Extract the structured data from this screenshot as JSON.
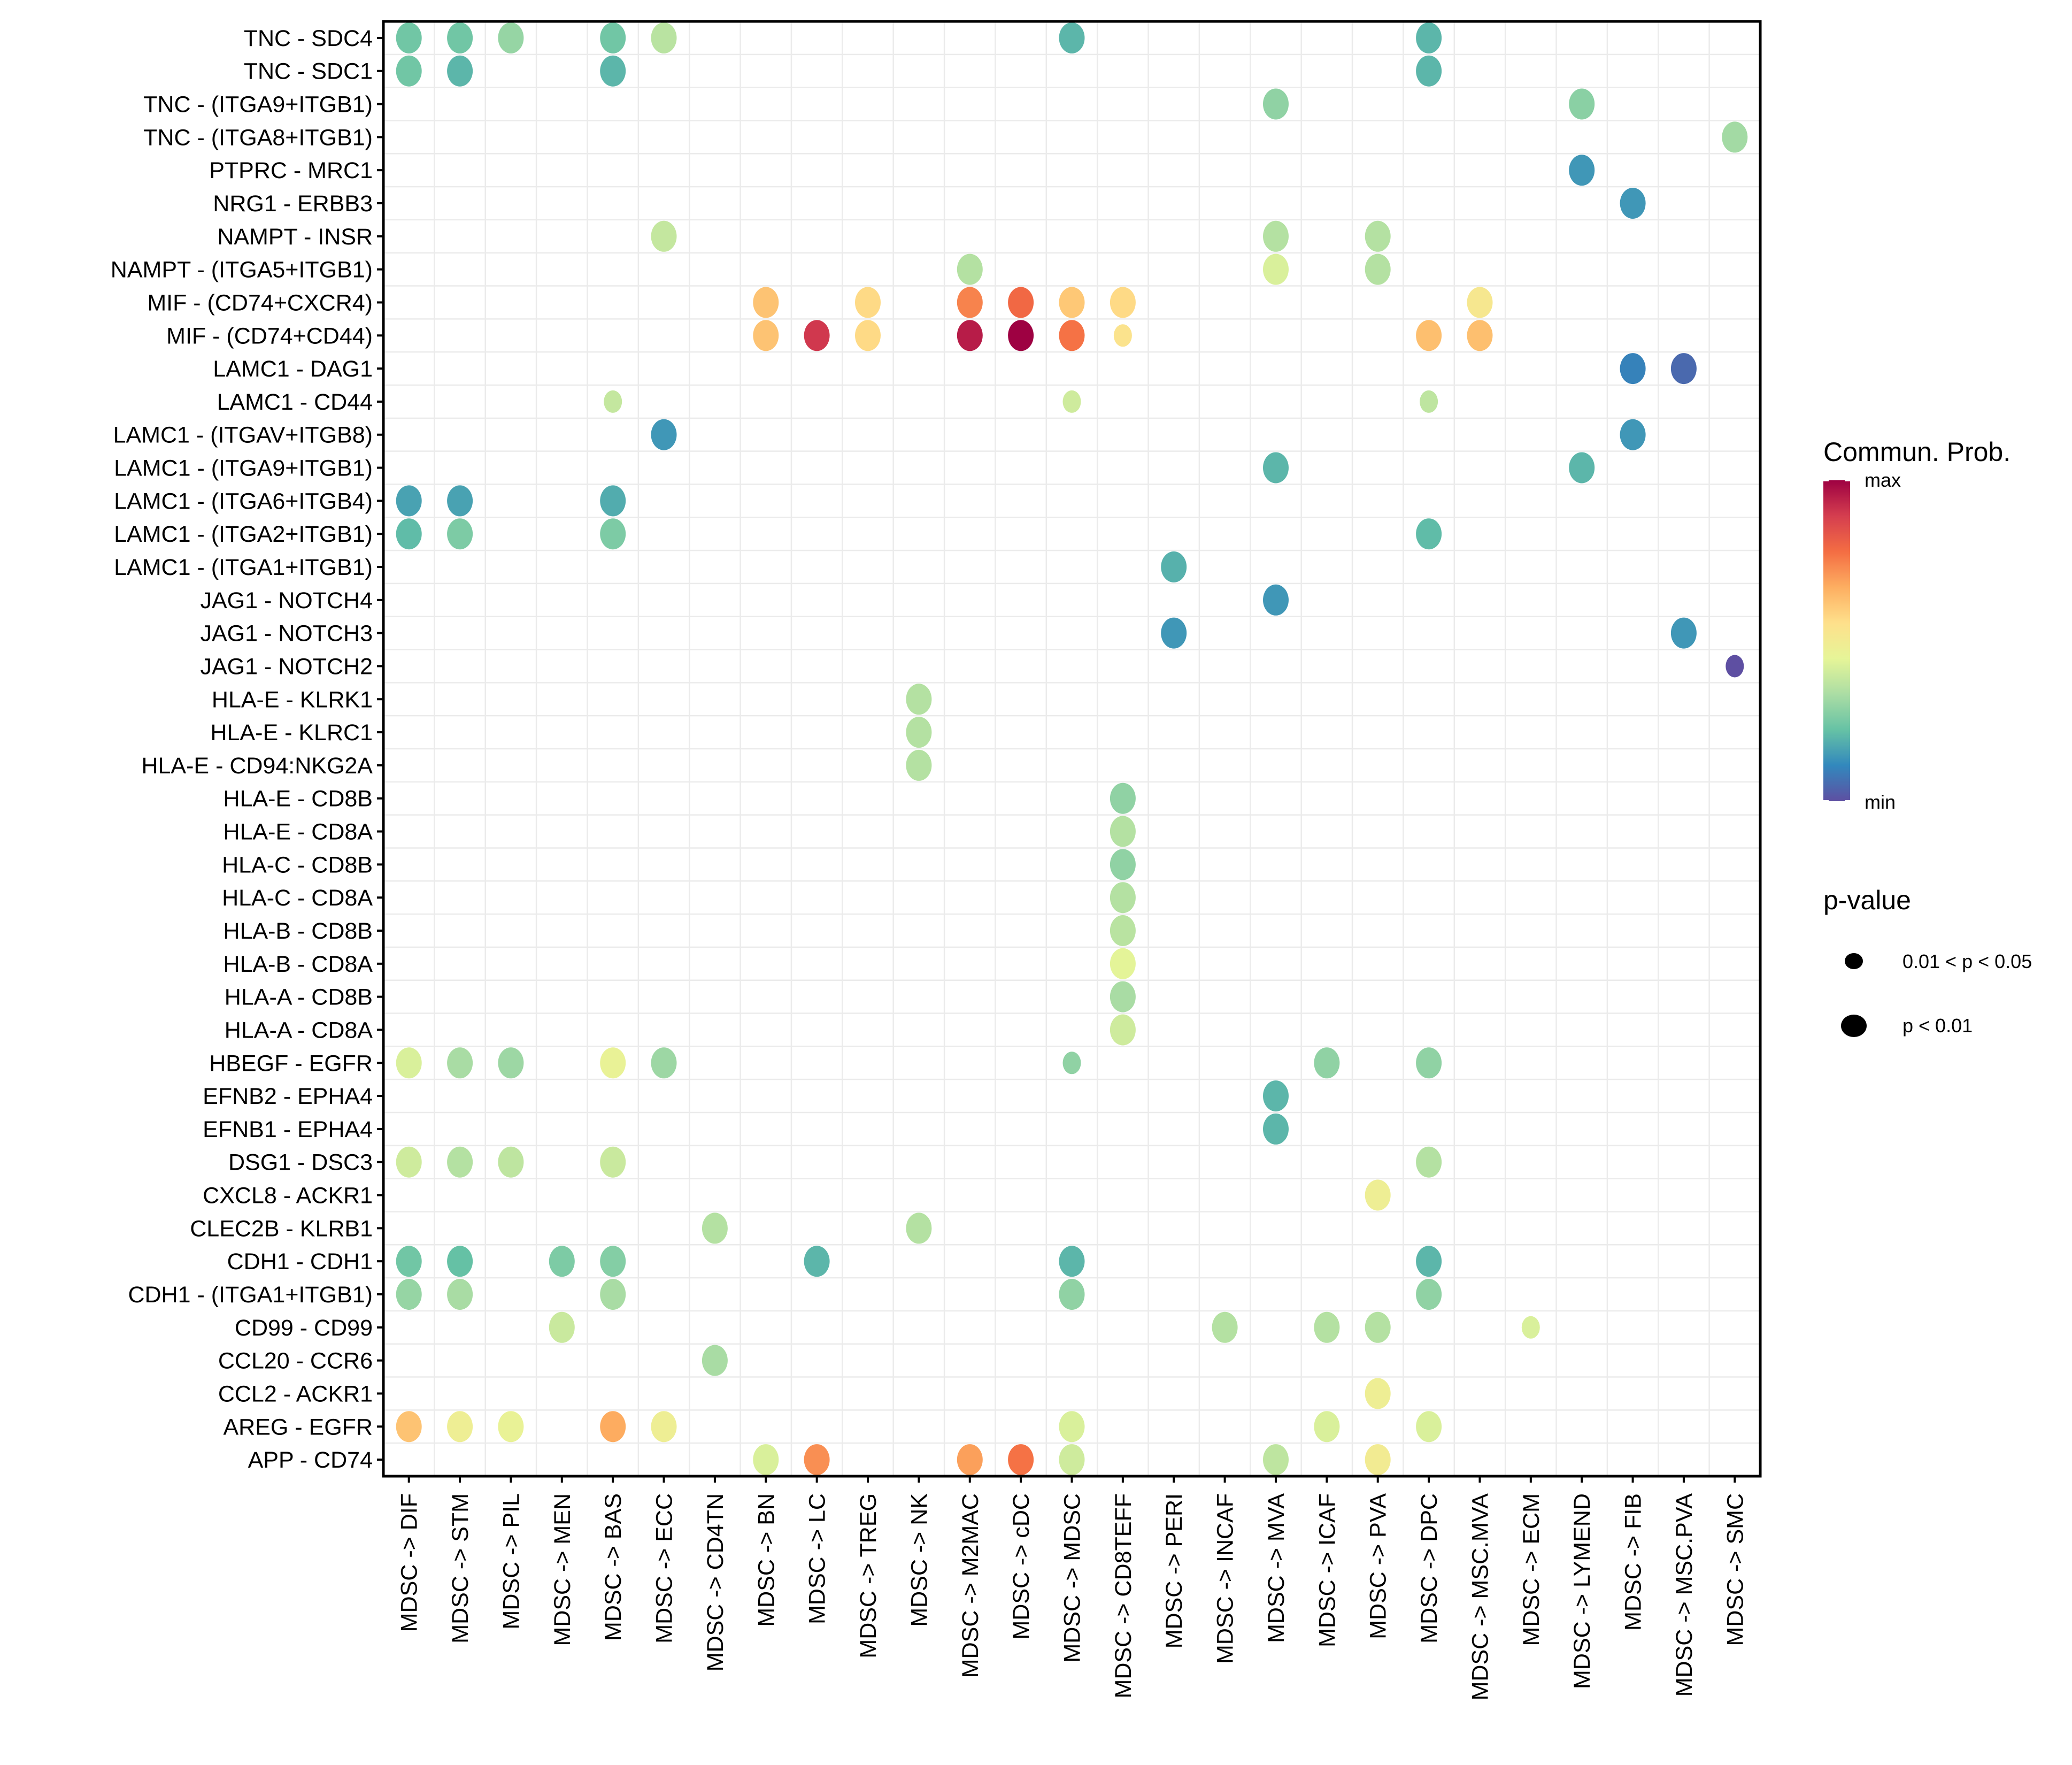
{
  "chart_data": {
    "type": "scatter",
    "subtype": "bubble-dotplot",
    "title": "",
    "xlabel": "",
    "ylabel": "",
    "grid": true,
    "x_categories": [
      "MDSC -> DIF",
      "MDSC -> STM",
      "MDSC -> PIL",
      "MDSC -> MEN",
      "MDSC -> BAS",
      "MDSC -> ECC",
      "MDSC -> CD4TN",
      "MDSC -> BN",
      "MDSC -> LC",
      "MDSC -> TREG",
      "MDSC -> NK",
      "MDSC -> M2MAC",
      "MDSC -> cDC",
      "MDSC -> MDSC",
      "MDSC -> CD8TEFF",
      "MDSC -> PERI",
      "MDSC -> INCAF",
      "MDSC -> MVA",
      "MDSC -> ICAF",
      "MDSC -> PVA",
      "MDSC -> DPC",
      "MDSC -> MSC.MVA",
      "MDSC -> ECM",
      "MDSC -> LYMEND",
      "MDSC -> FIB",
      "MDSC -> MSC.PVA",
      "MDSC -> SMC"
    ],
    "y_categories_top_to_bottom": [
      "TNC - SDC4",
      "TNC - SDC1",
      "TNC - (ITGA9+ITGB1)",
      "TNC - (ITGA8+ITGB1)",
      "PTPRC - MRC1",
      "NRG1 - ERBB3",
      "NAMPT - INSR",
      "NAMPT - (ITGA5+ITGB1)",
      "MIF - (CD74+CXCR4)",
      "MIF - (CD74+CD44)",
      "LAMC1 - DAG1",
      "LAMC1 - CD44",
      "LAMC1 - (ITGAV+ITGB8)",
      "LAMC1 - (ITGA9+ITGB1)",
      "LAMC1 - (ITGA6+ITGB4)",
      "LAMC1 - (ITGA2+ITGB1)",
      "LAMC1 - (ITGA1+ITGB1)",
      "JAG1 - NOTCH4",
      "JAG1 - NOTCH3",
      "JAG1 - NOTCH2",
      "HLA-E - KLRK1",
      "HLA-E - KLRC1",
      "HLA-E - CD94:NKG2A",
      "HLA-E - CD8B",
      "HLA-E - CD8A",
      "HLA-C - CD8B",
      "HLA-C - CD8A",
      "HLA-B - CD8B",
      "HLA-B - CD8A",
      "HLA-A - CD8B",
      "HLA-A - CD8A",
      "HBEGF - EGFR",
      "EFNB2 - EPHA4",
      "EFNB1 - EPHA4",
      "DSG1 - DSC3",
      "CXCL8 - ACKR1",
      "CLEC2B - KLRB1",
      "CDH1 - CDH1",
      "CDH1 - (ITGA1+ITGB1)",
      "CD99 - CD99",
      "CCL20 - CCR6",
      "CCL2 - ACKR1",
      "AREG - EGFR",
      "APP - CD74"
    ],
    "value_note": "prob is relative communication probability, 0 = min, 1 = max (estimated from color)",
    "points": [
      {
        "y": "TNC - SDC4",
        "x": "MDSC -> DIF",
        "prob": 0.24,
        "p": "p < 0.01"
      },
      {
        "y": "TNC - SDC4",
        "x": "MDSC -> STM",
        "prob": 0.24,
        "p": "p < 0.01"
      },
      {
        "y": "TNC - SDC4",
        "x": "MDSC -> PIL",
        "prob": 0.3,
        "p": "p < 0.01"
      },
      {
        "y": "TNC - SDC4",
        "x": "MDSC -> BAS",
        "prob": 0.24,
        "p": "p < 0.01"
      },
      {
        "y": "TNC - SDC4",
        "x": "MDSC -> ECC",
        "prob": 0.36,
        "p": "p < 0.01"
      },
      {
        "y": "TNC - SDC4",
        "x": "MDSC -> MDSC",
        "prob": 0.2,
        "p": "p < 0.01"
      },
      {
        "y": "TNC - SDC4",
        "x": "MDSC -> DPC",
        "prob": 0.2,
        "p": "p < 0.01"
      },
      {
        "y": "TNC - SDC1",
        "x": "MDSC -> DIF",
        "prob": 0.24,
        "p": "p < 0.01"
      },
      {
        "y": "TNC - SDC1",
        "x": "MDSC -> STM",
        "prob": 0.2,
        "p": "p < 0.01"
      },
      {
        "y": "TNC - SDC1",
        "x": "MDSC -> BAS",
        "prob": 0.2,
        "p": "p < 0.01"
      },
      {
        "y": "TNC - SDC1",
        "x": "MDSC -> DPC",
        "prob": 0.2,
        "p": "p < 0.01"
      },
      {
        "y": "TNC - (ITGA9+ITGB1)",
        "x": "MDSC -> MVA",
        "prob": 0.29,
        "p": "p < 0.01"
      },
      {
        "y": "TNC - (ITGA9+ITGB1)",
        "x": "MDSC -> LYMEND",
        "prob": 0.28,
        "p": "p < 0.01"
      },
      {
        "y": "TNC - (ITGA8+ITGB1)",
        "x": "MDSC -> SMC",
        "prob": 0.32,
        "p": "p < 0.01"
      },
      {
        "y": "PTPRC - MRC1",
        "x": "MDSC -> LYMEND",
        "prob": 0.14,
        "p": "p < 0.01"
      },
      {
        "y": "NRG1 - ERBB3",
        "x": "MDSC -> FIB",
        "prob": 0.14,
        "p": "p < 0.01"
      },
      {
        "y": "NAMPT - INSR",
        "x": "MDSC -> ECC",
        "prob": 0.38,
        "p": "p < 0.01"
      },
      {
        "y": "NAMPT - INSR",
        "x": "MDSC -> MVA",
        "prob": 0.35,
        "p": "p < 0.01"
      },
      {
        "y": "NAMPT - INSR",
        "x": "MDSC -> PVA",
        "prob": 0.35,
        "p": "p < 0.01"
      },
      {
        "y": "NAMPT - (ITGA5+ITGB1)",
        "x": "MDSC -> M2MAC",
        "prob": 0.35,
        "p": "p < 0.01"
      },
      {
        "y": "NAMPT - (ITGA5+ITGB1)",
        "x": "MDSC -> MVA",
        "prob": 0.42,
        "p": "p < 0.01"
      },
      {
        "y": "NAMPT - (ITGA5+ITGB1)",
        "x": "MDSC -> PVA",
        "prob": 0.35,
        "p": "p < 0.01"
      },
      {
        "y": "MIF - (CD74+CXCR4)",
        "x": "MDSC -> BN",
        "prob": 0.62,
        "p": "p < 0.01"
      },
      {
        "y": "MIF - (CD74+CXCR4)",
        "x": "MDSC -> TREG",
        "prob": 0.57,
        "p": "p < 0.01"
      },
      {
        "y": "MIF - (CD74+CXCR4)",
        "x": "MDSC -> M2MAC",
        "prob": 0.74,
        "p": "p < 0.01"
      },
      {
        "y": "MIF - (CD74+CXCR4)",
        "x": "MDSC -> cDC",
        "prob": 0.79,
        "p": "p < 0.01"
      },
      {
        "y": "MIF - (CD74+CXCR4)",
        "x": "MDSC -> MDSC",
        "prob": 0.61,
        "p": "p < 0.01"
      },
      {
        "y": "MIF - (CD74+CXCR4)",
        "x": "MDSC -> CD8TEFF",
        "prob": 0.57,
        "p": "p < 0.01"
      },
      {
        "y": "MIF - (CD74+CXCR4)",
        "x": "MDSC -> MSC.MVA",
        "prob": 0.52,
        "p": "p < 0.01"
      },
      {
        "y": "MIF - (CD74+CD44)",
        "x": "MDSC -> BN",
        "prob": 0.62,
        "p": "p < 0.01"
      },
      {
        "y": "MIF - (CD74+CD44)",
        "x": "MDSC -> LC",
        "prob": 0.9,
        "p": "p < 0.01"
      },
      {
        "y": "MIF - (CD74+CD44)",
        "x": "MDSC -> TREG",
        "prob": 0.57,
        "p": "p < 0.01"
      },
      {
        "y": "MIF - (CD74+CD44)",
        "x": "MDSC -> M2MAC",
        "prob": 0.95,
        "p": "p < 0.01"
      },
      {
        "y": "MIF - (CD74+CD44)",
        "x": "MDSC -> cDC",
        "prob": 1.0,
        "p": "p < 0.01"
      },
      {
        "y": "MIF - (CD74+CD44)",
        "x": "MDSC -> MDSC",
        "prob": 0.77,
        "p": "p < 0.01"
      },
      {
        "y": "MIF - (CD74+CD44)",
        "x": "MDSC -> CD8TEFF",
        "prob": 0.54,
        "p": "0.01 < p < 0.05"
      },
      {
        "y": "MIF - (CD74+CD44)",
        "x": "MDSC -> DPC",
        "prob": 0.63,
        "p": "p < 0.01"
      },
      {
        "y": "MIF - (CD74+CD44)",
        "x": "MDSC -> MSC.MVA",
        "prob": 0.63,
        "p": "p < 0.01"
      },
      {
        "y": "LAMC1 - DAG1",
        "x": "MDSC -> FIB",
        "prob": 0.1,
        "p": "p < 0.01"
      },
      {
        "y": "LAMC1 - DAG1",
        "x": "MDSC -> MSC.PVA",
        "prob": 0.05,
        "p": "p < 0.01"
      },
      {
        "y": "LAMC1 - CD44",
        "x": "MDSC -> BAS",
        "prob": 0.38,
        "p": "0.01 < p < 0.05"
      },
      {
        "y": "LAMC1 - CD44",
        "x": "MDSC -> MDSC",
        "prob": 0.4,
        "p": "0.01 < p < 0.05"
      },
      {
        "y": "LAMC1 - CD44",
        "x": "MDSC -> DPC",
        "prob": 0.37,
        "p": "0.01 < p < 0.05"
      },
      {
        "y": "LAMC1 - (ITGAV+ITGB8)",
        "x": "MDSC -> ECC",
        "prob": 0.14,
        "p": "p < 0.01"
      },
      {
        "y": "LAMC1 - (ITGAV+ITGB8)",
        "x": "MDSC -> FIB",
        "prob": 0.14,
        "p": "p < 0.01"
      },
      {
        "y": "LAMC1 - (ITGA9+ITGB1)",
        "x": "MDSC -> MVA",
        "prob": 0.2,
        "p": "p < 0.01"
      },
      {
        "y": "LAMC1 - (ITGA9+ITGB1)",
        "x": "MDSC -> LYMEND",
        "prob": 0.2,
        "p": "p < 0.01"
      },
      {
        "y": "LAMC1 - (ITGA6+ITGB4)",
        "x": "MDSC -> DIF",
        "prob": 0.16,
        "p": "p < 0.01"
      },
      {
        "y": "LAMC1 - (ITGA6+ITGB4)",
        "x": "MDSC -> STM",
        "prob": 0.16,
        "p": "p < 0.01"
      },
      {
        "y": "LAMC1 - (ITGA6+ITGB4)",
        "x": "MDSC -> BAS",
        "prob": 0.18,
        "p": "p < 0.01"
      },
      {
        "y": "LAMC1 - (ITGA2+ITGB1)",
        "x": "MDSC -> DIF",
        "prob": 0.21,
        "p": "p < 0.01"
      },
      {
        "y": "LAMC1 - (ITGA2+ITGB1)",
        "x": "MDSC -> STM",
        "prob": 0.26,
        "p": "p < 0.01"
      },
      {
        "y": "LAMC1 - (ITGA2+ITGB1)",
        "x": "MDSC -> BAS",
        "prob": 0.26,
        "p": "p < 0.01"
      },
      {
        "y": "LAMC1 - (ITGA2+ITGB1)",
        "x": "MDSC -> DPC",
        "prob": 0.21,
        "p": "p < 0.01"
      },
      {
        "y": "LAMC1 - (ITGA1+ITGB1)",
        "x": "MDSC -> PERI",
        "prob": 0.19,
        "p": "p < 0.01"
      },
      {
        "y": "JAG1 - NOTCH4",
        "x": "MDSC -> MVA",
        "prob": 0.14,
        "p": "p < 0.01"
      },
      {
        "y": "JAG1 - NOTCH3",
        "x": "MDSC -> PERI",
        "prob": 0.14,
        "p": "p < 0.01"
      },
      {
        "y": "JAG1 - NOTCH3",
        "x": "MDSC -> MSC.PVA",
        "prob": 0.14,
        "p": "p < 0.01"
      },
      {
        "y": "JAG1 - NOTCH2",
        "x": "MDSC -> SMC",
        "prob": 0.0,
        "p": "0.01 < p < 0.05"
      },
      {
        "y": "HLA-E - KLRK1",
        "x": "MDSC -> NK",
        "prob": 0.35,
        "p": "p < 0.01"
      },
      {
        "y": "HLA-E - KLRC1",
        "x": "MDSC -> NK",
        "prob": 0.35,
        "p": "p < 0.01"
      },
      {
        "y": "HLA-E - CD94:NKG2A",
        "x": "MDSC -> NK",
        "prob": 0.35,
        "p": "p < 0.01"
      },
      {
        "y": "HLA-E - CD8B",
        "x": "MDSC -> CD8TEFF",
        "prob": 0.29,
        "p": "p < 0.01"
      },
      {
        "y": "HLA-E - CD8A",
        "x": "MDSC -> CD8TEFF",
        "prob": 0.35,
        "p": "p < 0.01"
      },
      {
        "y": "HLA-C - CD8B",
        "x": "MDSC -> CD8TEFF",
        "prob": 0.29,
        "p": "p < 0.01"
      },
      {
        "y": "HLA-C - CD8A",
        "x": "MDSC -> CD8TEFF",
        "prob": 0.35,
        "p": "p < 0.01"
      },
      {
        "y": "HLA-B - CD8B",
        "x": "MDSC -> CD8TEFF",
        "prob": 0.36,
        "p": "p < 0.01"
      },
      {
        "y": "HLA-B - CD8A",
        "x": "MDSC -> CD8TEFF",
        "prob": 0.44,
        "p": "p < 0.01"
      },
      {
        "y": "HLA-A - CD8B",
        "x": "MDSC -> CD8TEFF",
        "prob": 0.33,
        "p": "p < 0.01"
      },
      {
        "y": "HLA-A - CD8A",
        "x": "MDSC -> CD8TEFF",
        "prob": 0.4,
        "p": "p < 0.01"
      },
      {
        "y": "HBEGF - EGFR",
        "x": "MDSC -> DIF",
        "prob": 0.42,
        "p": "p < 0.01"
      },
      {
        "y": "HBEGF - EGFR",
        "x": "MDSC -> STM",
        "prob": 0.33,
        "p": "p < 0.01"
      },
      {
        "y": "HBEGF - EGFR",
        "x": "MDSC -> PIL",
        "prob": 0.31,
        "p": "p < 0.01"
      },
      {
        "y": "HBEGF - EGFR",
        "x": "MDSC -> BAS",
        "prob": 0.46,
        "p": "p < 0.01"
      },
      {
        "y": "HBEGF - EGFR",
        "x": "MDSC -> ECC",
        "prob": 0.31,
        "p": "p < 0.01"
      },
      {
        "y": "HBEGF - EGFR",
        "x": "MDSC -> MDSC",
        "prob": 0.29,
        "p": "0.01 < p < 0.05"
      },
      {
        "y": "HBEGF - EGFR",
        "x": "MDSC -> ICAF",
        "prob": 0.29,
        "p": "p < 0.01"
      },
      {
        "y": "HBEGF - EGFR",
        "x": "MDSC -> DPC",
        "prob": 0.29,
        "p": "p < 0.01"
      },
      {
        "y": "EFNB2 - EPHA4",
        "x": "MDSC -> MVA",
        "prob": 0.2,
        "p": "p < 0.01"
      },
      {
        "y": "EFNB1 - EPHA4",
        "x": "MDSC -> MVA",
        "prob": 0.2,
        "p": "p < 0.01"
      },
      {
        "y": "DSG1 - DSC3",
        "x": "MDSC -> DIF",
        "prob": 0.4,
        "p": "p < 0.01"
      },
      {
        "y": "DSG1 - DSC3",
        "x": "MDSC -> STM",
        "prob": 0.35,
        "p": "p < 0.01"
      },
      {
        "y": "DSG1 - DSC3",
        "x": "MDSC -> PIL",
        "prob": 0.37,
        "p": "p < 0.01"
      },
      {
        "y": "DSG1 - DSC3",
        "x": "MDSC -> BAS",
        "prob": 0.39,
        "p": "p < 0.01"
      },
      {
        "y": "DSG1 - DSC3",
        "x": "MDSC -> DPC",
        "prob": 0.35,
        "p": "p < 0.01"
      },
      {
        "y": "CXCL8 - ACKR1",
        "x": "MDSC -> PVA",
        "prob": 0.48,
        "p": "p < 0.01"
      },
      {
        "y": "CLEC2B - KLRB1",
        "x": "MDSC -> CD4TN",
        "prob": 0.35,
        "p": "p < 0.01"
      },
      {
        "y": "CLEC2B - KLRB1",
        "x": "MDSC -> NK",
        "prob": 0.35,
        "p": "p < 0.01"
      },
      {
        "y": "CDH1 - CDH1",
        "x": "MDSC -> DIF",
        "prob": 0.24,
        "p": "p < 0.01"
      },
      {
        "y": "CDH1 - CDH1",
        "x": "MDSC -> STM",
        "prob": 0.22,
        "p": "p < 0.01"
      },
      {
        "y": "CDH1 - CDH1",
        "x": "MDSC -> MEN",
        "prob": 0.26,
        "p": "p < 0.01"
      },
      {
        "y": "CDH1 - CDH1",
        "x": "MDSC -> BAS",
        "prob": 0.27,
        "p": "p < 0.01"
      },
      {
        "y": "CDH1 - CDH1",
        "x": "MDSC -> LC",
        "prob": 0.2,
        "p": "p < 0.01"
      },
      {
        "y": "CDH1 - CDH1",
        "x": "MDSC -> MDSC",
        "prob": 0.2,
        "p": "p < 0.01"
      },
      {
        "y": "CDH1 - CDH1",
        "x": "MDSC -> DPC",
        "prob": 0.2,
        "p": "p < 0.01"
      },
      {
        "y": "CDH1 - (ITGA1+ITGB1)",
        "x": "MDSC -> DIF",
        "prob": 0.3,
        "p": "p < 0.01"
      },
      {
        "y": "CDH1 - (ITGA1+ITGB1)",
        "x": "MDSC -> STM",
        "prob": 0.33,
        "p": "p < 0.01"
      },
      {
        "y": "CDH1 - (ITGA1+ITGB1)",
        "x": "MDSC -> BAS",
        "prob": 0.33,
        "p": "p < 0.01"
      },
      {
        "y": "CDH1 - (ITGA1+ITGB1)",
        "x": "MDSC -> MDSC",
        "prob": 0.29,
        "p": "p < 0.01"
      },
      {
        "y": "CDH1 - (ITGA1+ITGB1)",
        "x": "MDSC -> DPC",
        "prob": 0.29,
        "p": "p < 0.01"
      },
      {
        "y": "CD99 - CD99",
        "x": "MDSC -> MEN",
        "prob": 0.39,
        "p": "p < 0.01"
      },
      {
        "y": "CD99 - CD99",
        "x": "MDSC -> INCAF",
        "prob": 0.35,
        "p": "p < 0.01"
      },
      {
        "y": "CD99 - CD99",
        "x": "MDSC -> ICAF",
        "prob": 0.35,
        "p": "p < 0.01"
      },
      {
        "y": "CD99 - CD99",
        "x": "MDSC -> PVA",
        "prob": 0.35,
        "p": "p < 0.01"
      },
      {
        "y": "CD99 - CD99",
        "x": "MDSC -> ECM",
        "prob": 0.42,
        "p": "0.01 < p < 0.05"
      },
      {
        "y": "CCL20 - CCR6",
        "x": "MDSC -> CD4TN",
        "prob": 0.33,
        "p": "p < 0.01"
      },
      {
        "y": "CCL2 - ACKR1",
        "x": "MDSC -> PVA",
        "prob": 0.48,
        "p": "p < 0.01"
      },
      {
        "y": "AREG - EGFR",
        "x": "MDSC -> DIF",
        "prob": 0.62,
        "p": "p < 0.01"
      },
      {
        "y": "AREG - EGFR",
        "x": "MDSC -> STM",
        "prob": 0.48,
        "p": "p < 0.01"
      },
      {
        "y": "AREG - EGFR",
        "x": "MDSC -> PIL",
        "prob": 0.46,
        "p": "p < 0.01"
      },
      {
        "y": "AREG - EGFR",
        "x": "MDSC -> BAS",
        "prob": 0.67,
        "p": "p < 0.01"
      },
      {
        "y": "AREG - EGFR",
        "x": "MDSC -> ECC",
        "prob": 0.48,
        "p": "p < 0.01"
      },
      {
        "y": "AREG - EGFR",
        "x": "MDSC -> MDSC",
        "prob": 0.42,
        "p": "p < 0.01"
      },
      {
        "y": "AREG - EGFR",
        "x": "MDSC -> ICAF",
        "prob": 0.42,
        "p": "p < 0.01"
      },
      {
        "y": "AREG - EGFR",
        "x": "MDSC -> DPC",
        "prob": 0.42,
        "p": "p < 0.01"
      },
      {
        "y": "APP - CD74",
        "x": "MDSC -> BN",
        "prob": 0.42,
        "p": "p < 0.01"
      },
      {
        "y": "APP - CD74",
        "x": "MDSC -> LC",
        "prob": 0.72,
        "p": "p < 0.01"
      },
      {
        "y": "APP - CD74",
        "x": "MDSC -> M2MAC",
        "prob": 0.69,
        "p": "p < 0.01"
      },
      {
        "y": "APP - CD74",
        "x": "MDSC -> cDC",
        "prob": 0.77,
        "p": "p < 0.01"
      },
      {
        "y": "APP - CD74",
        "x": "MDSC -> MDSC",
        "prob": 0.4,
        "p": "p < 0.01"
      },
      {
        "y": "APP - CD74",
        "x": "MDSC -> MVA",
        "prob": 0.37,
        "p": "p < 0.01"
      },
      {
        "y": "APP - CD74",
        "x": "MDSC -> PVA",
        "prob": 0.5,
        "p": "p < 0.01"
      }
    ],
    "legend": {
      "placement": "right",
      "color_title": "Commun. Prob.",
      "color_max_label": "max",
      "color_min_label": "min",
      "color_scale": [
        "#5e4fa2",
        "#3288bd",
        "#66c2a5",
        "#abdda4",
        "#e6f598",
        "#fee08b",
        "#fdae61",
        "#f46d43",
        "#d53e4f",
        "#9e0142"
      ],
      "size_title": "p-value",
      "size_entries": [
        "0.01 < p < 0.05",
        "p < 0.01"
      ]
    }
  }
}
